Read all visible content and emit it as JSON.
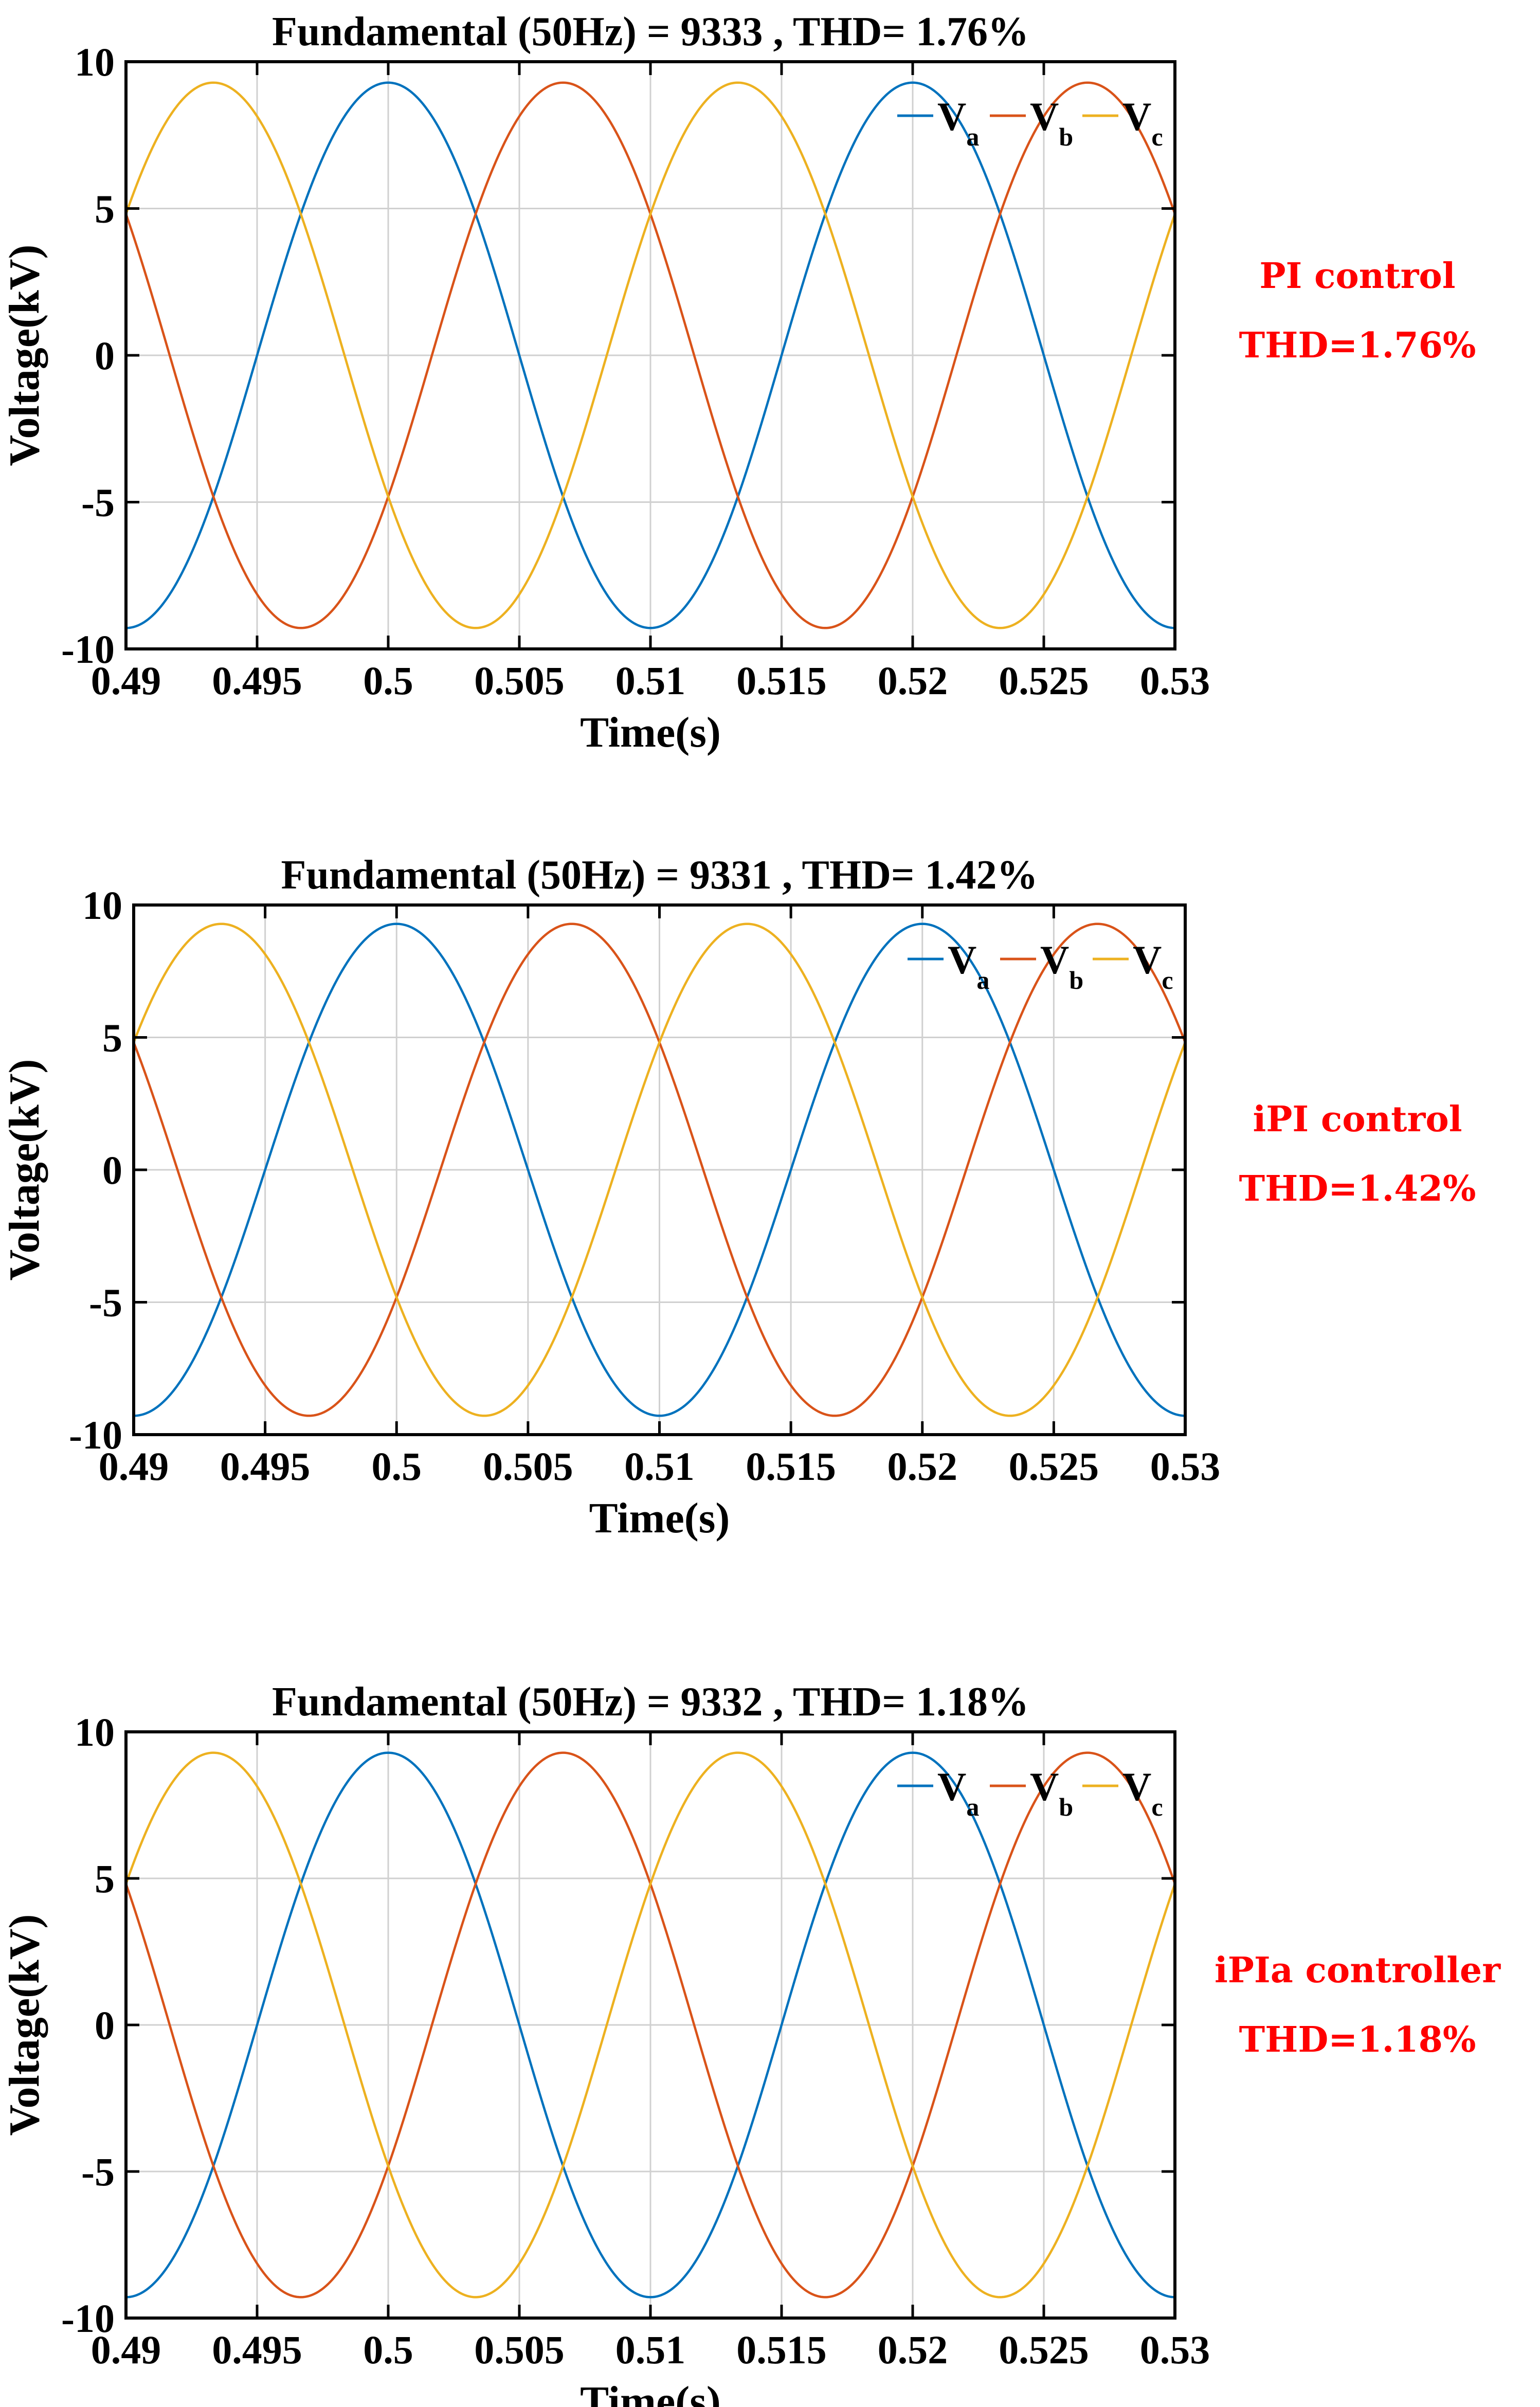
{
  "chart_data": [
    {
      "type": "line",
      "title": "Fundamental (50Hz) = 9333 , THD= 1.76%",
      "xlabel": "Time(s)",
      "ylabel": "Voltage(kV)",
      "xlim": [
        0.49,
        0.53
      ],
      "ylim": [
        -10,
        10
      ],
      "xticks": [
        "0.49",
        "0.495",
        "0.5",
        "0.505",
        "0.51",
        "0.515",
        "0.52",
        "0.525",
        "0.53"
      ],
      "yticks": [
        "10",
        "5",
        "0",
        "-5",
        "-10"
      ],
      "grid": true,
      "legend_position": "top-right",
      "frequency_hz": 50,
      "amplitude_kv": 9.4,
      "series": [
        {
          "name": "V",
          "sub": "a",
          "color": "#0072bd",
          "phase_deg": 0,
          "peak_times": [
            0.5,
            0.52
          ]
        },
        {
          "name": "V",
          "sub": "b",
          "color": "#d95319",
          "phase_deg": -120,
          "peak_times": [
            0.50667,
            0.52667
          ]
        },
        {
          "name": "V",
          "sub": "c",
          "color": "#edb120",
          "phase_deg": 120,
          "peak_times": [
            0.49333,
            0.51333
          ]
        }
      ],
      "annotation": {
        "line1": "PI control",
        "line2": "THD=1.76%"
      }
    },
    {
      "type": "line",
      "title": "Fundamental (50Hz) = 9331 , THD= 1.42%",
      "xlabel": "Time(s)",
      "ylabel": "Voltage(kV)",
      "xlim": [
        0.49,
        0.53
      ],
      "ylim": [
        -10,
        10
      ],
      "xticks": [
        "0.49",
        "0.495",
        "0.5",
        "0.505",
        "0.51",
        "0.515",
        "0.52",
        "0.525",
        "0.53"
      ],
      "yticks": [
        "10",
        "5",
        "0",
        "-5",
        "-10"
      ],
      "grid": true,
      "legend_position": "top-right",
      "frequency_hz": 50,
      "amplitude_kv": 9.4,
      "series": [
        {
          "name": "V",
          "sub": "a",
          "color": "#0072bd",
          "phase_deg": 0,
          "peak_times": [
            0.5,
            0.52
          ]
        },
        {
          "name": "V",
          "sub": "b",
          "color": "#d95319",
          "phase_deg": -120,
          "peak_times": [
            0.50667,
            0.52667
          ]
        },
        {
          "name": "V",
          "sub": "c",
          "color": "#edb120",
          "phase_deg": 120,
          "peak_times": [
            0.49333,
            0.51333
          ]
        }
      ],
      "annotation": {
        "line1": "iPI control",
        "line2": "THD=1.42%"
      }
    },
    {
      "type": "line",
      "title": "Fundamental (50Hz) = 9332 , THD= 1.18%",
      "xlabel": "Time(s)",
      "ylabel": "Voltage(kV)",
      "xlim": [
        0.49,
        0.53
      ],
      "ylim": [
        -10,
        10
      ],
      "xticks": [
        "0.49",
        "0.495",
        "0.5",
        "0.505",
        "0.51",
        "0.515",
        "0.52",
        "0.525",
        "0.53"
      ],
      "yticks": [
        "10",
        "5",
        "0",
        "-5",
        "-10"
      ],
      "grid": true,
      "legend_position": "top-right",
      "frequency_hz": 50,
      "amplitude_kv": 9.4,
      "series": [
        {
          "name": "V",
          "sub": "a",
          "color": "#0072bd",
          "phase_deg": 0,
          "peak_times": [
            0.5,
            0.52
          ]
        },
        {
          "name": "V",
          "sub": "b",
          "color": "#d95319",
          "phase_deg": -120,
          "peak_times": [
            0.50667,
            0.52667
          ]
        },
        {
          "name": "V",
          "sub": "c",
          "color": "#edb120",
          "phase_deg": 120,
          "peak_times": [
            0.49333,
            0.51333
          ]
        }
      ],
      "annotation": {
        "line1": "iPIa controller",
        "line2": "THD=1.18%"
      }
    }
  ]
}
